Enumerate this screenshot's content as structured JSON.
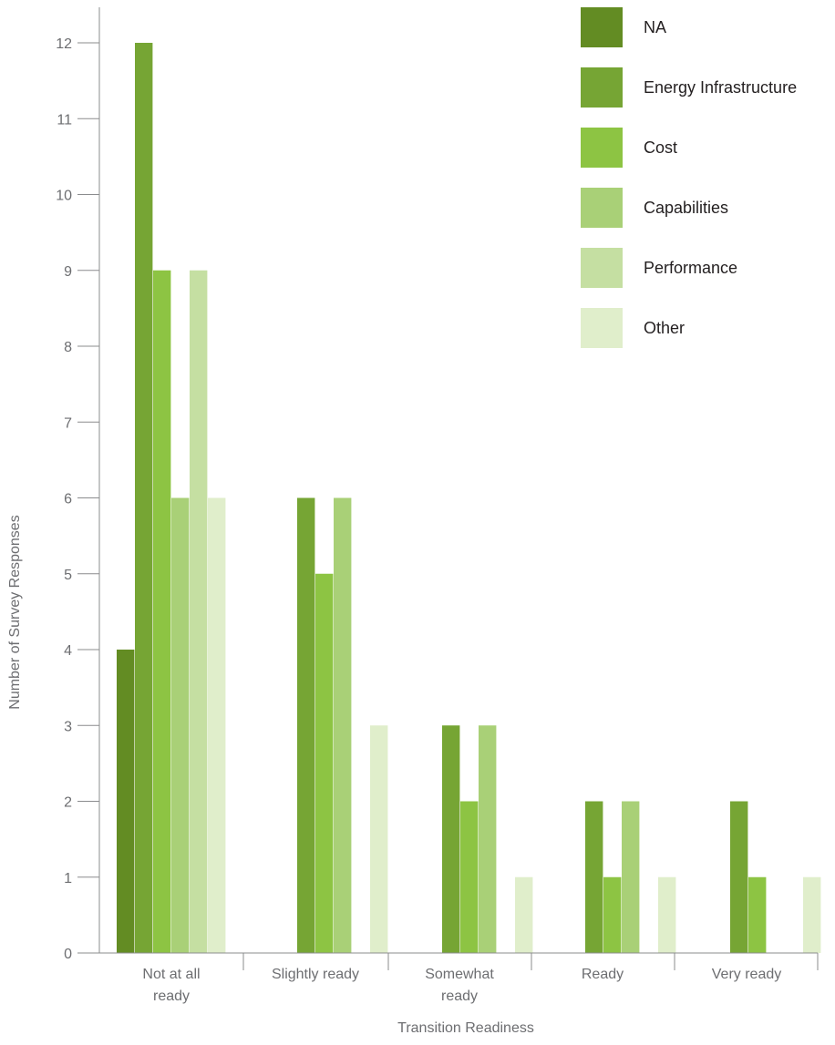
{
  "chart_data": {
    "type": "bar",
    "title": "",
    "xlabel": "Transition Readiness",
    "ylabel": "Number of Survey Responses",
    "ylim": [
      0,
      12
    ],
    "yticks": [
      0,
      1,
      2,
      3,
      4,
      5,
      6,
      7,
      8,
      9,
      10,
      11,
      12
    ],
    "grid": false,
    "legend_position": "top-right",
    "categories": [
      [
        "Not at all",
        "ready"
      ],
      [
        "Slightly ready"
      ],
      [
        "Somewhat",
        "ready"
      ],
      [
        "Ready"
      ],
      [
        "Very ready"
      ]
    ],
    "series": [
      {
        "name": "NA",
        "color": "#638c23",
        "values": [
          4,
          0,
          0,
          0,
          0
        ]
      },
      {
        "name": "Energy Infrastructure",
        "color": "#76a534",
        "values": [
          12,
          6,
          3,
          2,
          2
        ]
      },
      {
        "name": "Cost",
        "color": "#8dc443",
        "values": [
          9,
          5,
          2,
          1,
          1
        ]
      },
      {
        "name": "Capabilities",
        "color": "#a9d077",
        "values": [
          6,
          6,
          3,
          2,
          0
        ]
      },
      {
        "name": "Performance",
        "color": "#c5dfa2",
        "values": [
          9,
          0,
          0,
          0,
          0
        ]
      },
      {
        "name": "Other",
        "color": "#e0eecb",
        "values": [
          6,
          3,
          1,
          1,
          1
        ]
      }
    ]
  }
}
